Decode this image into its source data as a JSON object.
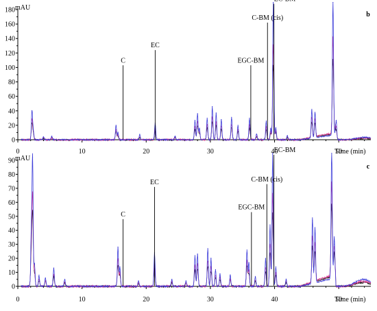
{
  "chart_data": [
    {
      "type": "line",
      "panel_letter": "b",
      "ylabel": "mAU",
      "xlabel": "Time (min)",
      "xlim": [
        0,
        55
      ],
      "ylim": [
        -5,
        190
      ],
      "xticks": [
        0,
        10,
        20,
        30,
        40,
        50
      ],
      "yticks": [
        0,
        20,
        40,
        60,
        80,
        100,
        120,
        140,
        160,
        180
      ],
      "series_colors": {
        "blue": "#3b3bd9",
        "pink": "#e0348f",
        "black": "#111111"
      },
      "peaks": [
        {
          "x": 2.2,
          "y": 40
        },
        {
          "x": 2.4,
          "y": 14
        },
        {
          "x": 4.0,
          "y": 4
        },
        {
          "x": 5.3,
          "y": 5
        },
        {
          "x": 15.3,
          "y": 20
        },
        {
          "x": 15.6,
          "y": 10
        },
        {
          "x": 19.0,
          "y": 7
        },
        {
          "x": 21.4,
          "y": 23
        },
        {
          "x": 24.5,
          "y": 5
        },
        {
          "x": 27.6,
          "y": 27
        },
        {
          "x": 28.0,
          "y": 36
        },
        {
          "x": 28.3,
          "y": 16
        },
        {
          "x": 29.5,
          "y": 30
        },
        {
          "x": 30.3,
          "y": 46
        },
        {
          "x": 30.9,
          "y": 37
        },
        {
          "x": 31.7,
          "y": 28
        },
        {
          "x": 33.3,
          "y": 31
        },
        {
          "x": 34.3,
          "y": 20
        },
        {
          "x": 36.1,
          "y": 30
        },
        {
          "x": 37.2,
          "y": 8
        },
        {
          "x": 38.7,
          "y": 26
        },
        {
          "x": 39.4,
          "y": 16
        },
        {
          "x": 39.8,
          "y": 190
        },
        {
          "x": 40.2,
          "y": 17
        },
        {
          "x": 42.0,
          "y": 6
        },
        {
          "x": 45.8,
          "y": 40
        },
        {
          "x": 46.3,
          "y": 36
        },
        {
          "x": 49.1,
          "y": 190
        },
        {
          "x": 49.6,
          "y": 27
        },
        {
          "x": 54.0,
          "y": 3.5
        }
      ],
      "annotations": [
        {
          "label": "C",
          "x": 16.4,
          "y": 103
        },
        {
          "label": "EC",
          "x": 21.4,
          "y": 124
        },
        {
          "label": "EGC-BM",
          "x": 36.3,
          "y": 103
        },
        {
          "label": "C-BM (cis)",
          "x": 38.9,
          "y": 162
        },
        {
          "label": "EC-BM",
          "x": 39.9,
          "y": 188
        }
      ]
    },
    {
      "type": "line",
      "panel_letter": "c",
      "ylabel": "mAU",
      "xlabel": "Time (min)",
      "xlim": [
        0,
        55
      ],
      "ylim": [
        -3,
        95
      ],
      "xticks": [
        0,
        10,
        20,
        30,
        40,
        50
      ],
      "yticks": [
        0,
        10,
        20,
        30,
        40,
        50,
        60,
        70,
        80,
        90
      ],
      "series_colors": {
        "blue": "#3b3bd9",
        "pink": "#e0348f",
        "black": "#111111"
      },
      "peaks": [
        {
          "x": 2.1,
          "y": 38
        },
        {
          "x": 2.3,
          "y": 92
        },
        {
          "x": 2.6,
          "y": 16
        },
        {
          "x": 3.3,
          "y": 8
        },
        {
          "x": 4.3,
          "y": 6
        },
        {
          "x": 5.6,
          "y": 13
        },
        {
          "x": 7.3,
          "y": 5
        },
        {
          "x": 15.6,
          "y": 28
        },
        {
          "x": 15.9,
          "y": 14
        },
        {
          "x": 18.8,
          "y": 4
        },
        {
          "x": 21.3,
          "y": 24
        },
        {
          "x": 24.0,
          "y": 5
        },
        {
          "x": 26.2,
          "y": 4
        },
        {
          "x": 27.6,
          "y": 22
        },
        {
          "x": 28.0,
          "y": 23
        },
        {
          "x": 29.6,
          "y": 27
        },
        {
          "x": 30.1,
          "y": 20
        },
        {
          "x": 30.8,
          "y": 12
        },
        {
          "x": 31.5,
          "y": 9
        },
        {
          "x": 33.1,
          "y": 8
        },
        {
          "x": 35.7,
          "y": 26
        },
        {
          "x": 36.0,
          "y": 17
        },
        {
          "x": 37.0,
          "y": 7
        },
        {
          "x": 38.6,
          "y": 20
        },
        {
          "x": 39.3,
          "y": 44
        },
        {
          "x": 39.7,
          "y": 95
        },
        {
          "x": 40.2,
          "y": 14
        },
        {
          "x": 41.8,
          "y": 5
        },
        {
          "x": 45.9,
          "y": 47
        },
        {
          "x": 46.3,
          "y": 40
        },
        {
          "x": 48.9,
          "y": 95
        },
        {
          "x": 49.3,
          "y": 30
        },
        {
          "x": 53.8,
          "y": 5
        }
      ],
      "annotations": [
        {
          "label": "C",
          "x": 16.4,
          "y": 48
        },
        {
          "label": "EC",
          "x": 21.3,
          "y": 71
        },
        {
          "label": "EGC-BM",
          "x": 36.4,
          "y": 53
        },
        {
          "label": "C-BM (cis)",
          "x": 38.8,
          "y": 73
        },
        {
          "label": "EC-BM",
          "x": 39.9,
          "y": 94
        }
      ]
    }
  ]
}
